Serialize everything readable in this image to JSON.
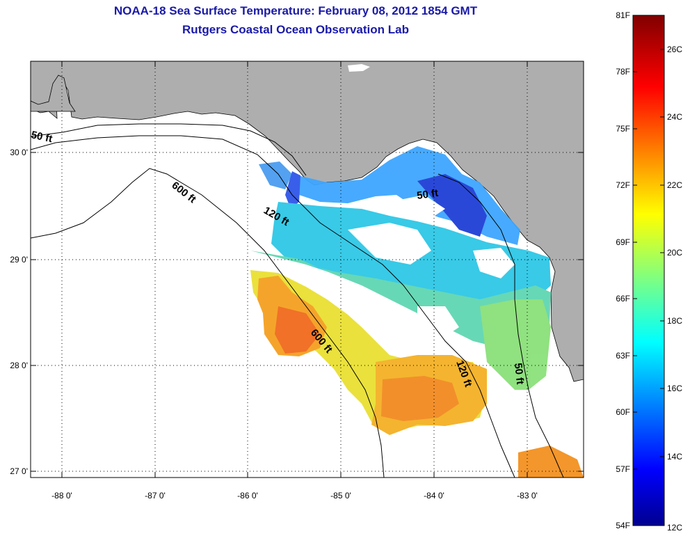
{
  "title": {
    "line1": "NOAA-18 Sea Surface Temperature:  February 08, 2012 1854 GMT",
    "line2": "Rutgers Coastal Ocean Observation Lab"
  },
  "map": {
    "x_ticks": [
      "-88 0'",
      "-87 0'",
      "-86 0'",
      "-85 0'",
      "-84 0'",
      "-83 0'"
    ],
    "y_ticks": [
      "30 0'",
      "29 0'",
      "28 0'",
      "27 0'"
    ],
    "contour_labels": [
      "50 ft",
      "600 ft",
      "120 ft",
      "50 ft",
      "600 ft",
      "120 ft",
      "50 ft"
    ],
    "colors": {
      "land": "#aeaeae",
      "ocean": "#ffffff",
      "grid": "#000000"
    }
  },
  "colorbar": {
    "left_labels": [
      "81F",
      "78F",
      "75F",
      "72F",
      "69F",
      "66F",
      "63F",
      "60F",
      "57F",
      "54F"
    ],
    "right_labels": [
      "26C",
      "24C",
      "22C",
      "20C",
      "18C",
      "16C",
      "14C",
      "12C"
    ],
    "range_c": [
      12,
      27.2
    ],
    "colormap": "jet"
  }
}
